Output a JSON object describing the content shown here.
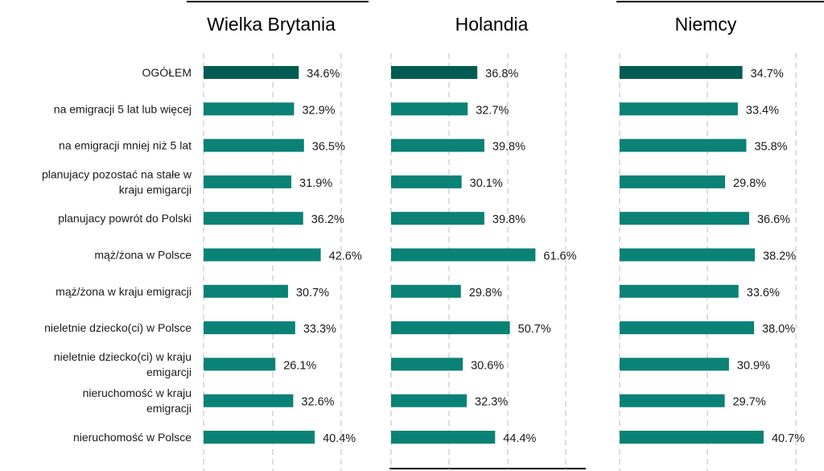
{
  "chart_data": {
    "type": "bar",
    "orientation": "horizontal",
    "categories": [
      "OGÓŁEM",
      "na emigracji 5 lat lub więcej",
      "na emigracji mniej niż 5 lat",
      "planujacy pozostać na stałe w kraju emigarcji",
      "planujacy powrót do Polski",
      "mąż/żona w Polsce",
      "mąż/żona w kraju emigracji",
      "nieletnie dziecko(ci) w Polsce",
      "nieletnie dziecko(ci) w kraju emigarcji",
      "nieruchomość w kraju emigracji",
      "nieruchomość w Polsce"
    ],
    "category_lines": [
      [
        "OGÓŁEM"
      ],
      [
        "na emigracji 5 lat lub więcej"
      ],
      [
        "na emigracji mniej niż 5 lat"
      ],
      [
        "planujacy pozostać na stałe w",
        "kraju emigarcji"
      ],
      [
        "planujacy powrót do Polski"
      ],
      [
        "mąż/żona w Polsce"
      ],
      [
        "mąż/żona w kraju emigracji"
      ],
      [
        "nieletnie dziecko(ci) w Polsce"
      ],
      [
        "nieletnie dziecko(ci) w kraju",
        "emigarcji"
      ],
      [
        "nieruchomość w kraju",
        "emigracji"
      ],
      [
        "nieruchomość w Polsce"
      ]
    ],
    "panels": [
      {
        "title": "Wielka Brytania",
        "values": [
          34.6,
          32.9,
          36.5,
          31.9,
          36.2,
          42.6,
          30.7,
          33.3,
          26.1,
          32.6,
          40.4
        ],
        "labels": [
          "34.6%",
          "32.9%",
          "36.5%",
          "31.9%",
          "36.2%",
          "42.6%",
          "30.7%",
          "33.3%",
          "26.1%",
          "32.6%",
          "40.4%"
        ]
      },
      {
        "title": "Holandia",
        "values": [
          36.8,
          32.7,
          39.8,
          30.1,
          39.8,
          61.6,
          29.8,
          50.7,
          30.6,
          32.3,
          44.4
        ],
        "labels": [
          "36.8%",
          "32.7%",
          "39.8%",
          "30.1%",
          "39.8%",
          "61.6%",
          "29.8%",
          "50.7%",
          "30.6%",
          "32.3%",
          "44.4%"
        ]
      },
      {
        "title": "Niemcy",
        "values": [
          34.7,
          33.4,
          35.8,
          29.8,
          36.6,
          38.2,
          33.6,
          38.0,
          30.9,
          29.7,
          40.7
        ],
        "labels": [
          "34.7%",
          "33.4%",
          "35.8%",
          "29.8%",
          "36.6%",
          "38.2%",
          "33.6%",
          "38.0%",
          "30.9%",
          "29.7%",
          "40.7%"
        ]
      }
    ],
    "grid": true,
    "legend": false,
    "colors": {
      "total_bar": "#005c52",
      "bar": "#0a8275",
      "grid": "#c8c8c8"
    }
  }
}
